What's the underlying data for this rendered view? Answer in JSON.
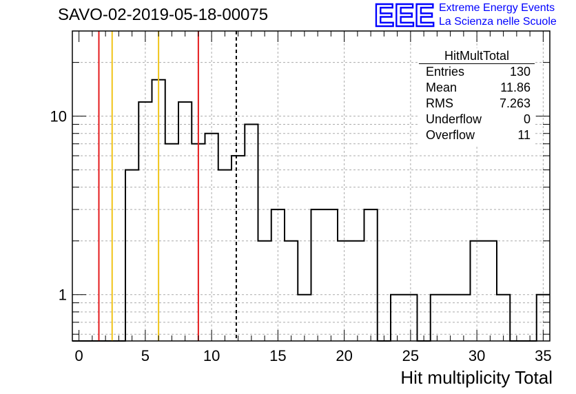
{
  "title": "SAVO-02-2019-05-18-00075",
  "logo": {
    "text": "EEE",
    "line1": "Extreme Energy Events",
    "line2": "La Scienza nelle Scuole",
    "color": "#0000ff"
  },
  "stats_box": {
    "name": "HitMultTotal",
    "rows": [
      {
        "key": "Entries",
        "value": "130"
      },
      {
        "key": "Mean",
        "value": "11.86"
      },
      {
        "key": "RMS",
        "value": "7.263"
      },
      {
        "key": "Underflow",
        "value": "0"
      },
      {
        "key": "Overflow",
        "value": "11"
      }
    ]
  },
  "chart_data": {
    "type": "histogram",
    "title": "SAVO-02-2019-05-18-00075",
    "xlabel": "Hit multiplicity Total",
    "ylabel": "",
    "xlim": [
      -0.5,
      35.5
    ],
    "ylim": [
      0.55,
      30
    ],
    "yscale": "log",
    "grid": true,
    "x_ticks": [
      0,
      5,
      10,
      15,
      20,
      25,
      30,
      35
    ],
    "y_ticks": [
      1,
      10
    ],
    "bin_edges": [
      -0.5,
      0.5,
      1.5,
      2.5,
      3.5,
      4.5,
      5.5,
      6.5,
      7.5,
      8.5,
      9.5,
      10.5,
      11.5,
      12.5,
      13.5,
      14.5,
      15.5,
      16.5,
      17.5,
      18.5,
      19.5,
      20.5,
      21.5,
      22.5,
      23.5,
      24.5,
      25.5,
      26.5,
      27.5,
      28.5,
      29.5,
      30.5,
      31.5,
      32.5,
      33.5,
      34.5,
      35.5
    ],
    "counts": [
      0,
      0,
      0,
      0,
      5,
      12,
      16,
      7,
      12,
      7,
      8,
      5,
      6,
      9,
      2,
      3,
      2,
      1,
      3,
      3,
      2,
      2,
      3,
      0,
      1,
      1,
      0,
      1,
      1,
      1,
      2,
      2,
      1,
      0,
      0,
      1
    ],
    "vertical_lines": [
      {
        "x": 1.5,
        "color": "#e41a1c",
        "style": "solid"
      },
      {
        "x": 2.5,
        "color": "#f0c419",
        "style": "solid"
      },
      {
        "x": 6.0,
        "color": "#f0c419",
        "style": "solid"
      },
      {
        "x": 9.0,
        "color": "#e41a1c",
        "style": "solid"
      },
      {
        "x": 11.86,
        "color": "#000000",
        "style": "dashed"
      }
    ],
    "stats": {
      "entries": 130,
      "mean": 11.86,
      "rms": 7.263,
      "underflow": 0,
      "overflow": 11
    }
  }
}
